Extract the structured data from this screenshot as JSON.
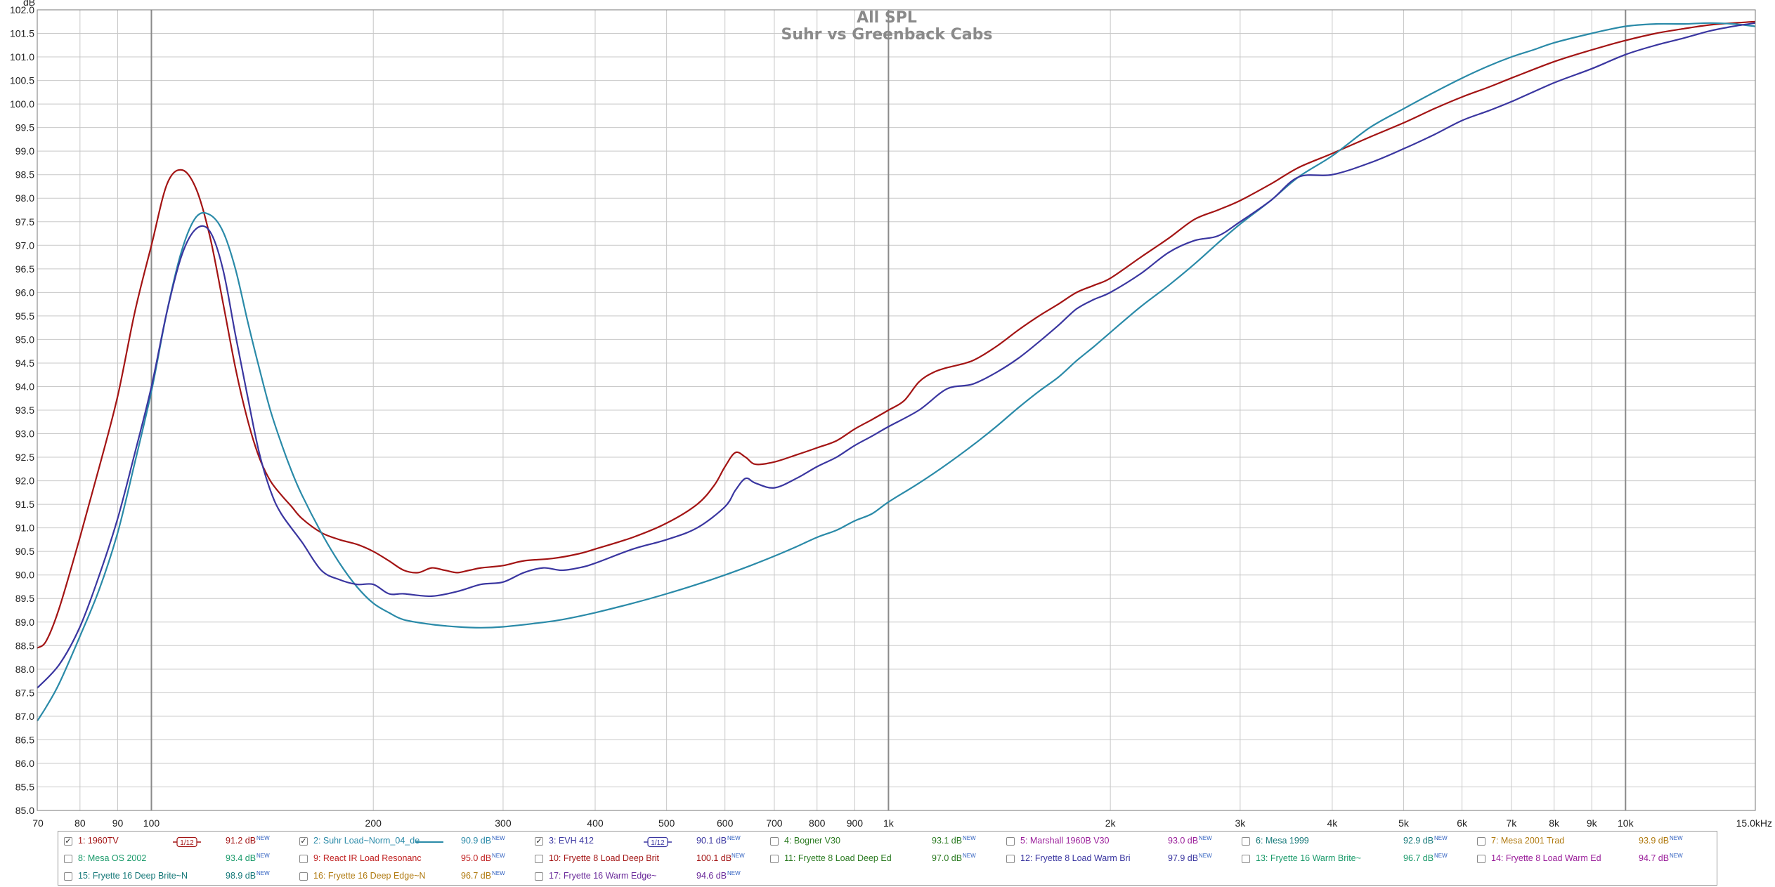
{
  "chart_data": {
    "type": "line",
    "title": "All SPL",
    "subtitle": "Suhr vs Greenback Cabs",
    "y_unit_label": "dB",
    "x_scale": "log",
    "xlim": [
      70,
      15000
    ],
    "ylim": [
      85.0,
      102.0
    ],
    "y_ticks": [
      85.0,
      85.5,
      86.0,
      86.5,
      87.0,
      87.5,
      88.0,
      88.5,
      89.0,
      89.5,
      90.0,
      90.5,
      91.0,
      91.5,
      92.0,
      92.5,
      93.0,
      93.5,
      94.0,
      94.5,
      95.0,
      95.5,
      96.0,
      96.5,
      97.0,
      97.5,
      98.0,
      98.5,
      99.0,
      99.5,
      100.0,
      100.5,
      101.0,
      101.5,
      102.0
    ],
    "x_ticks": [
      {
        "v": 70,
        "label": "70"
      },
      {
        "v": 80,
        "label": "80"
      },
      {
        "v": 90,
        "label": "90"
      },
      {
        "v": 100,
        "label": "100"
      },
      {
        "v": 200,
        "label": "200"
      },
      {
        "v": 300,
        "label": "300"
      },
      {
        "v": 400,
        "label": "400"
      },
      {
        "v": 500,
        "label": "500"
      },
      {
        "v": 600,
        "label": "600"
      },
      {
        "v": 700,
        "label": "700"
      },
      {
        "v": 800,
        "label": "800"
      },
      {
        "v": 900,
        "label": "900"
      },
      {
        "v": 1000,
        "label": "1k"
      },
      {
        "v": 2000,
        "label": "2k"
      },
      {
        "v": 3000,
        "label": "3k"
      },
      {
        "v": 4000,
        "label": "4k"
      },
      {
        "v": 5000,
        "label": "5k"
      },
      {
        "v": 6000,
        "label": "6k"
      },
      {
        "v": 7000,
        "label": "7k"
      },
      {
        "v": 8000,
        "label": "8k"
      },
      {
        "v": 9000,
        "label": "9k"
      },
      {
        "v": 10000,
        "label": "10k"
      },
      {
        "v": 15000,
        "label": "15.0kHz"
      }
    ],
    "major_x": [
      100,
      1000,
      10000
    ],
    "grid": true,
    "series": [
      {
        "name": "1: 1960TV",
        "color": "#a31414",
        "points": [
          [
            70,
            88.45
          ],
          [
            72,
            88.6
          ],
          [
            75,
            89.3
          ],
          [
            80,
            90.8
          ],
          [
            85,
            92.3
          ],
          [
            90,
            93.8
          ],
          [
            95,
            95.6
          ],
          [
            100,
            97.0
          ],
          [
            105,
            98.3
          ],
          [
            110,
            98.6
          ],
          [
            115,
            98.2
          ],
          [
            120,
            97.2
          ],
          [
            125,
            95.8
          ],
          [
            130,
            94.4
          ],
          [
            135,
            93.3
          ],
          [
            140,
            92.5
          ],
          [
            145,
            92.0
          ],
          [
            150,
            91.7
          ],
          [
            155,
            91.45
          ],
          [
            160,
            91.2
          ],
          [
            170,
            90.9
          ],
          [
            180,
            90.75
          ],
          [
            190,
            90.65
          ],
          [
            200,
            90.5
          ],
          [
            210,
            90.3
          ],
          [
            220,
            90.1
          ],
          [
            230,
            90.05
          ],
          [
            240,
            90.15
          ],
          [
            250,
            90.1
          ],
          [
            260,
            90.05
          ],
          [
            270,
            90.1
          ],
          [
            280,
            90.15
          ],
          [
            300,
            90.2
          ],
          [
            320,
            90.3
          ],
          [
            350,
            90.35
          ],
          [
            380,
            90.45
          ],
          [
            400,
            90.55
          ],
          [
            450,
            90.8
          ],
          [
            500,
            91.1
          ],
          [
            550,
            91.5
          ],
          [
            580,
            91.9
          ],
          [
            600,
            92.3
          ],
          [
            620,
            92.6
          ],
          [
            640,
            92.5
          ],
          [
            660,
            92.35
          ],
          [
            700,
            92.4
          ],
          [
            750,
            92.55
          ],
          [
            800,
            92.7
          ],
          [
            850,
            92.85
          ],
          [
            900,
            93.1
          ],
          [
            950,
            93.3
          ],
          [
            1000,
            93.5
          ],
          [
            1050,
            93.7
          ],
          [
            1100,
            94.1
          ],
          [
            1150,
            94.3
          ],
          [
            1200,
            94.4
          ],
          [
            1300,
            94.55
          ],
          [
            1400,
            94.85
          ],
          [
            1500,
            95.2
          ],
          [
            1600,
            95.5
          ],
          [
            1700,
            95.75
          ],
          [
            1800,
            96.0
          ],
          [
            1900,
            96.15
          ],
          [
            2000,
            96.3
          ],
          [
            2200,
            96.75
          ],
          [
            2400,
            97.15
          ],
          [
            2600,
            97.55
          ],
          [
            2800,
            97.75
          ],
          [
            3000,
            97.95
          ],
          [
            3300,
            98.3
          ],
          [
            3600,
            98.65
          ],
          [
            4000,
            98.95
          ],
          [
            4500,
            99.3
          ],
          [
            5000,
            99.6
          ],
          [
            5500,
            99.9
          ],
          [
            6000,
            100.15
          ],
          [
            6500,
            100.35
          ],
          [
            7000,
            100.55
          ],
          [
            8000,
            100.9
          ],
          [
            9000,
            101.15
          ],
          [
            10000,
            101.35
          ],
          [
            11000,
            101.5
          ],
          [
            12000,
            101.6
          ],
          [
            13000,
            101.68
          ],
          [
            14000,
            101.72
          ],
          [
            15000,
            101.75
          ]
        ]
      },
      {
        "name": "2: Suhr Load~Norm_04_de",
        "color": "#2a8aa8",
        "points": [
          [
            70,
            86.9
          ],
          [
            72,
            87.2
          ],
          [
            75,
            87.7
          ],
          [
            80,
            88.7
          ],
          [
            85,
            89.7
          ],
          [
            90,
            90.9
          ],
          [
            95,
            92.4
          ],
          [
            100,
            93.9
          ],
          [
            105,
            95.6
          ],
          [
            110,
            96.9
          ],
          [
            115,
            97.6
          ],
          [
            120,
            97.65
          ],
          [
            125,
            97.3
          ],
          [
            130,
            96.5
          ],
          [
            135,
            95.4
          ],
          [
            140,
            94.4
          ],
          [
            145,
            93.5
          ],
          [
            150,
            92.8
          ],
          [
            155,
            92.2
          ],
          [
            160,
            91.7
          ],
          [
            170,
            90.9
          ],
          [
            180,
            90.25
          ],
          [
            190,
            89.75
          ],
          [
            200,
            89.4
          ],
          [
            210,
            89.2
          ],
          [
            220,
            89.05
          ],
          [
            240,
            88.95
          ],
          [
            260,
            88.9
          ],
          [
            280,
            88.88
          ],
          [
            300,
            88.9
          ],
          [
            330,
            88.97
          ],
          [
            360,
            89.05
          ],
          [
            400,
            89.2
          ],
          [
            450,
            89.4
          ],
          [
            500,
            89.6
          ],
          [
            550,
            89.8
          ],
          [
            600,
            90.0
          ],
          [
            650,
            90.2
          ],
          [
            700,
            90.4
          ],
          [
            750,
            90.6
          ],
          [
            800,
            90.8
          ],
          [
            850,
            90.95
          ],
          [
            900,
            91.15
          ],
          [
            950,
            91.3
          ],
          [
            1000,
            91.55
          ],
          [
            1100,
            91.95
          ],
          [
            1200,
            92.35
          ],
          [
            1300,
            92.75
          ],
          [
            1400,
            93.15
          ],
          [
            1500,
            93.55
          ],
          [
            1600,
            93.9
          ],
          [
            1700,
            94.2
          ],
          [
            1800,
            94.55
          ],
          [
            1900,
            94.85
          ],
          [
            2000,
            95.15
          ],
          [
            2200,
            95.7
          ],
          [
            2400,
            96.15
          ],
          [
            2600,
            96.6
          ],
          [
            2800,
            97.05
          ],
          [
            3000,
            97.45
          ],
          [
            3300,
            97.95
          ],
          [
            3600,
            98.45
          ],
          [
            4000,
            98.9
          ],
          [
            4500,
            99.5
          ],
          [
            5000,
            99.9
          ],
          [
            5500,
            100.25
          ],
          [
            6000,
            100.55
          ],
          [
            6500,
            100.8
          ],
          [
            7000,
            101.0
          ],
          [
            7500,
            101.15
          ],
          [
            8000,
            101.3
          ],
          [
            9000,
            101.5
          ],
          [
            10000,
            101.65
          ],
          [
            11000,
            101.7
          ],
          [
            12000,
            101.7
          ],
          [
            13000,
            101.72
          ],
          [
            14000,
            101.7
          ],
          [
            15000,
            101.65
          ]
        ]
      },
      {
        "name": "3: EVH 412",
        "color": "#3a36a0",
        "points": [
          [
            70,
            87.6
          ],
          [
            75,
            88.1
          ],
          [
            80,
            88.9
          ],
          [
            85,
            90.0
          ],
          [
            90,
            91.2
          ],
          [
            95,
            92.6
          ],
          [
            100,
            94.0
          ],
          [
            105,
            95.6
          ],
          [
            110,
            96.8
          ],
          [
            115,
            97.35
          ],
          [
            120,
            97.3
          ],
          [
            125,
            96.5
          ],
          [
            130,
            95.1
          ],
          [
            135,
            93.8
          ],
          [
            140,
            92.6
          ],
          [
            145,
            91.8
          ],
          [
            150,
            91.3
          ],
          [
            160,
            90.7
          ],
          [
            170,
            90.1
          ],
          [
            180,
            89.9
          ],
          [
            190,
            89.8
          ],
          [
            200,
            89.8
          ],
          [
            210,
            89.6
          ],
          [
            220,
            89.6
          ],
          [
            240,
            89.55
          ],
          [
            260,
            89.65
          ],
          [
            280,
            89.8
          ],
          [
            300,
            89.85
          ],
          [
            320,
            90.05
          ],
          [
            340,
            90.15
          ],
          [
            360,
            90.1
          ],
          [
            380,
            90.15
          ],
          [
            400,
            90.25
          ],
          [
            450,
            90.55
          ],
          [
            500,
            90.75
          ],
          [
            550,
            91.0
          ],
          [
            600,
            91.45
          ],
          [
            620,
            91.8
          ],
          [
            640,
            92.05
          ],
          [
            660,
            91.95
          ],
          [
            700,
            91.85
          ],
          [
            750,
            92.05
          ],
          [
            800,
            92.3
          ],
          [
            850,
            92.5
          ],
          [
            900,
            92.75
          ],
          [
            950,
            92.95
          ],
          [
            1000,
            93.15
          ],
          [
            1100,
            93.5
          ],
          [
            1200,
            93.95
          ],
          [
            1300,
            94.05
          ],
          [
            1400,
            94.3
          ],
          [
            1500,
            94.6
          ],
          [
            1600,
            94.95
          ],
          [
            1700,
            95.3
          ],
          [
            1800,
            95.65
          ],
          [
            1900,
            95.85
          ],
          [
            2000,
            96.0
          ],
          [
            2200,
            96.4
          ],
          [
            2400,
            96.85
          ],
          [
            2600,
            97.1
          ],
          [
            2800,
            97.2
          ],
          [
            3000,
            97.5
          ],
          [
            3300,
            97.95
          ],
          [
            3600,
            98.45
          ],
          [
            4000,
            98.5
          ],
          [
            4500,
            98.75
          ],
          [
            5000,
            99.05
          ],
          [
            5500,
            99.35
          ],
          [
            6000,
            99.65
          ],
          [
            6500,
            99.85
          ],
          [
            7000,
            100.05
          ],
          [
            8000,
            100.45
          ],
          [
            9000,
            100.75
          ],
          [
            10000,
            101.05
          ],
          [
            11000,
            101.25
          ],
          [
            12000,
            101.4
          ],
          [
            13000,
            101.55
          ],
          [
            14000,
            101.65
          ],
          [
            15000,
            101.72
          ]
        ]
      }
    ]
  },
  "legend": [
    {
      "checked": true,
      "label": "1: 1960TV",
      "value": "91.2 dB",
      "badge": "NEW",
      "color": "#a31414",
      "smoothing": "1/12"
    },
    {
      "checked": true,
      "label": "2: Suhr Load~Norm_04_de",
      "value": "90.9 dB",
      "badge": "NEW",
      "color": "#2a8aa8",
      "line_swatch": true
    },
    {
      "checked": true,
      "label": "3: EVH 412",
      "value": "90.1 dB",
      "badge": "NEW",
      "color": "#3a36a0",
      "smoothing": "1/12"
    },
    {
      "checked": false,
      "label": "4: Bogner V30",
      "value": "93.1 dB",
      "badge": "NEW",
      "color": "#2a7a20"
    },
    {
      "checked": false,
      "label": "5: Marshall 1960B V30",
      "value": "93.0 dB",
      "badge": "NEW",
      "color": "#9a1e9a"
    },
    {
      "checked": false,
      "label": "6: Mesa 1999",
      "value": "92.9 dB",
      "badge": "NEW",
      "color": "#157878"
    },
    {
      "checked": false,
      "label": "7: Mesa 2001 Trad",
      "value": "93.9 dB",
      "badge": "NEW",
      "color": "#b07a10"
    },
    {
      "checked": false,
      "label": "8: Mesa OS 2002",
      "value": "93.4 dB",
      "badge": "NEW",
      "color": "#1a9a6a"
    },
    {
      "checked": false,
      "label": "9: React IR Load Resonanc",
      "value": "95.0 dB",
      "badge": "NEW",
      "color": "#c02020"
    },
    {
      "checked": false,
      "label": "10: Fryette 8  Load Deep Brit",
      "value": "100.1 dB",
      "badge": "NEW",
      "color": "#a31414"
    },
    {
      "checked": false,
      "label": "11: Fryette 8  Load Deep Ed",
      "value": "97.0 dB",
      "badge": "NEW",
      "color": "#2a7a20"
    },
    {
      "checked": false,
      "label": "12: Fryette 8  Load Warm Bri",
      "value": "97.9 dB",
      "badge": "NEW",
      "color": "#3a36a0"
    },
    {
      "checked": false,
      "label": "13: Fryette 16  Warm Brite~",
      "value": "96.7 dB",
      "badge": "NEW",
      "color": "#1a9a6a"
    },
    {
      "checked": false,
      "label": "14: Fryette 8  Load Warm Ed",
      "value": "94.7 dB",
      "badge": "NEW",
      "color": "#9a1e9a"
    },
    {
      "checked": false,
      "label": "15: Fryette 16  Deep Brite~N",
      "value": "98.9 dB",
      "badge": "NEW",
      "color": "#157878"
    },
    {
      "checked": false,
      "label": "16: Fryette 16  Deep Edge~N",
      "value": "96.7 dB",
      "badge": "NEW",
      "color": "#b07a10"
    },
    {
      "checked": false,
      "label": "17: Fryette 16  Warm Edge~",
      "value": "94.6 dB",
      "badge": "NEW",
      "color": "#6a2a9a"
    }
  ],
  "check_glyph": "✓"
}
